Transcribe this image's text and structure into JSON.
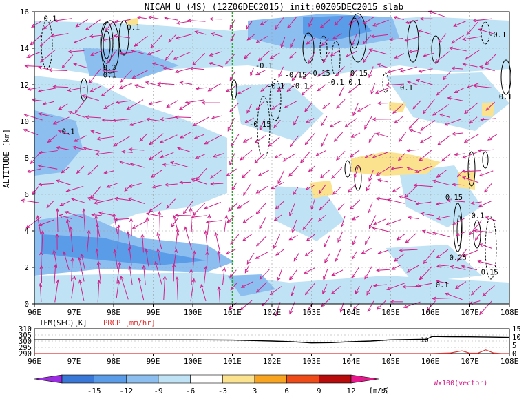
{
  "chart_data": [
    {
      "type": "heatmap",
      "title": "NICAM U (4S) (12Z06DEC2015) init:00Z05DEC2015 slab",
      "ylabel": "ALTITUDE [km]",
      "x_ticks": [
        "96E",
        "97E",
        "98E",
        "99E",
        "100E",
        "101E",
        "102E",
        "103E",
        "104E",
        "105E",
        "106E",
        "107E",
        "108E"
      ],
      "x_values": [
        96,
        97,
        98,
        99,
        100,
        101,
        102,
        103,
        104,
        105,
        106,
        107,
        108
      ],
      "y_ticks": [
        "0",
        "2",
        "4",
        "6",
        "8",
        "10",
        "12",
        "14",
        "16"
      ],
      "y_values": [
        0,
        2,
        4,
        6,
        8,
        10,
        12,
        14,
        16
      ],
      "xlim": [
        96,
        108
      ],
      "ylim": [
        0,
        16
      ],
      "grid": true,
      "reference_line_x": 101,
      "contour_labels": [
        {
          "text": "0.1",
          "x": 96.4,
          "y": 15.5
        },
        {
          "text": "0.1",
          "x": 98.5,
          "y": 15.0
        },
        {
          "text": "0.2",
          "x": 97.9,
          "y": 12.8
        },
        {
          "text": "0.1",
          "x": 97.9,
          "y": 12.4
        },
        {
          "text": "-0.1",
          "x": 96.8,
          "y": 9.3
        },
        {
          "text": "-0.1",
          "x": 101.8,
          "y": 12.9
        },
        {
          "text": "-0.15",
          "x": 102.6,
          "y": 12.4
        },
        {
          "text": "-0.1",
          "x": 102.1,
          "y": 11.8
        },
        {
          "text": "-0.1",
          "x": 102.7,
          "y": 11.8
        },
        {
          "text": "-0.15",
          "x": 103.2,
          "y": 12.5
        },
        {
          "text": "-0.1",
          "x": 103.6,
          "y": 12.0
        },
        {
          "text": "0.1",
          "x": 104.1,
          "y": 12.0
        },
        {
          "text": "0.15",
          "x": 104.2,
          "y": 12.5
        },
        {
          "text": "-0.15",
          "x": 101.7,
          "y": 9.7
        },
        {
          "text": "0.1",
          "x": 105.4,
          "y": 11.7
        },
        {
          "text": "-0.1",
          "x": 107.7,
          "y": 14.6
        },
        {
          "text": "0.1",
          "x": 107.9,
          "y": 11.2
        },
        {
          "text": "0.15",
          "x": 106.6,
          "y": 5.7
        },
        {
          "text": "0.1",
          "x": 107.2,
          "y": 4.7
        },
        {
          "text": "0.25",
          "x": 106.7,
          "y": 2.4
        },
        {
          "text": "0.15",
          "x": 107.5,
          "y": 1.6
        },
        {
          "text": "0.1",
          "x": 106.3,
          "y": 0.9
        }
      ],
      "line_label": "10"
    },
    {
      "type": "line",
      "x_ticks": [
        "96E",
        "97E",
        "98E",
        "99E",
        "100E",
        "101E",
        "102E",
        "103E",
        "104E",
        "105E",
        "106E",
        "107E",
        "108E"
      ],
      "xlim": [
        96,
        108
      ],
      "series": [
        {
          "name": "TEM(SFC)[K]",
          "color": "#000000",
          "axis": "left",
          "ylim": [
            290,
            310
          ],
          "y_ticks": [
            "310",
            "305",
            "300",
            "295",
            "290"
          ],
          "x": [
            96,
            97,
            98,
            99,
            100,
            101,
            102,
            102.5,
            103,
            103.5,
            104,
            104.5,
            105,
            105.5,
            105.9,
            106.05,
            106.5,
            107,
            107.5,
            108
          ],
          "y": [
            301,
            301,
            301,
            301,
            301,
            300.8,
            300,
            299.5,
            298.5,
            298.7,
            299.5,
            300,
            301,
            301.3,
            301.5,
            303.8,
            303.6,
            303.5,
            303.3,
            303
          ]
        },
        {
          "name": "PRCP [mm/hr]",
          "color": "#e03030",
          "axis": "right",
          "ylim": [
            0,
            15
          ],
          "y_ticks": [
            "15",
            "10",
            "5",
            "0"
          ],
          "x": [
            96,
            100,
            104,
            106,
            106.5,
            106.8,
            107.0,
            107.2,
            107.4,
            107.6,
            107.8,
            108
          ],
          "y": [
            0,
            0,
            0,
            0,
            0.3,
            1.6,
            0.2,
            0.2,
            2.2,
            0.3,
            0,
            0
          ]
        }
      ]
    }
  ],
  "colorbar": {
    "ticks": [
      "-15",
      "-12",
      "-9",
      "-6",
      "-3",
      "3",
      "6",
      "9",
      "12",
      "15"
    ],
    "unit": "[m/s]",
    "colors": [
      "#9b2de0",
      "#3a78d8",
      "#5a9ce8",
      "#8cbff0",
      "#bfe3f5",
      "#ffffff",
      "#fbe28f",
      "#f8a421",
      "#ee4b18",
      "#b80c0c",
      "#e5198b"
    ],
    "vector_label": "Wx100(vector)"
  },
  "legend": {
    "tem_label": "TEM(SFC)[K]",
    "prcp_label": "PRCP [mm/hr]"
  }
}
